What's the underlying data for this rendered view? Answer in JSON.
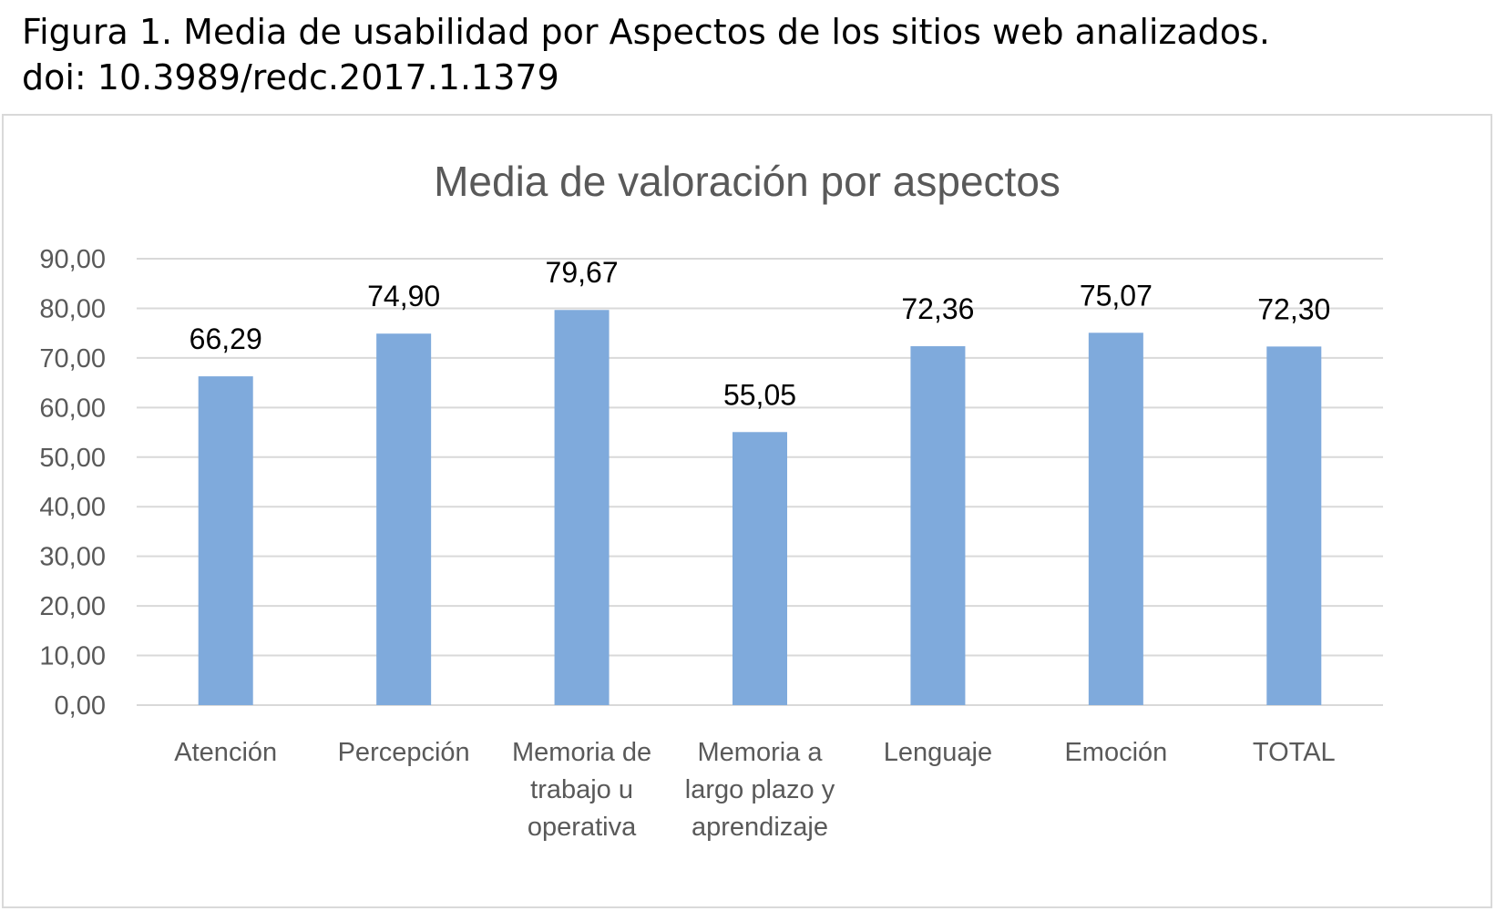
{
  "caption": {
    "line1": "Figura 1. Media de usabilidad por Aspectos de los sitios web analizados.",
    "line2": "doi: 10.3989/redc.2017.1.1379"
  },
  "chart_data": {
    "type": "bar",
    "title": "Media de valoración por aspectos",
    "xlabel": "",
    "ylabel": "",
    "ylim": [
      0,
      90
    ],
    "yticks": [
      "0,00",
      "10,00",
      "20,00",
      "30,00",
      "40,00",
      "50,00",
      "60,00",
      "70,00",
      "80,00",
      "90,00"
    ],
    "ytick_values": [
      0,
      10,
      20,
      30,
      40,
      50,
      60,
      70,
      80,
      90
    ],
    "categories": [
      [
        "Atención"
      ],
      [
        "Percepción"
      ],
      [
        "Memoria de",
        "trabajo u",
        "operativa"
      ],
      [
        "Memoria a",
        "largo plazo y",
        "aprendizaje"
      ],
      [
        "Lenguaje"
      ],
      [
        "Emoción"
      ],
      [
        "TOTAL"
      ]
    ],
    "values": [
      66.29,
      74.9,
      79.67,
      55.05,
      72.36,
      75.07,
      72.3
    ],
    "value_labels": [
      "66,29",
      "74,90",
      "79,67",
      "55,05",
      "72,36",
      "75,07",
      "72,30"
    ],
    "bar_color": "#7faadc",
    "grid": true,
    "legend": "none"
  }
}
